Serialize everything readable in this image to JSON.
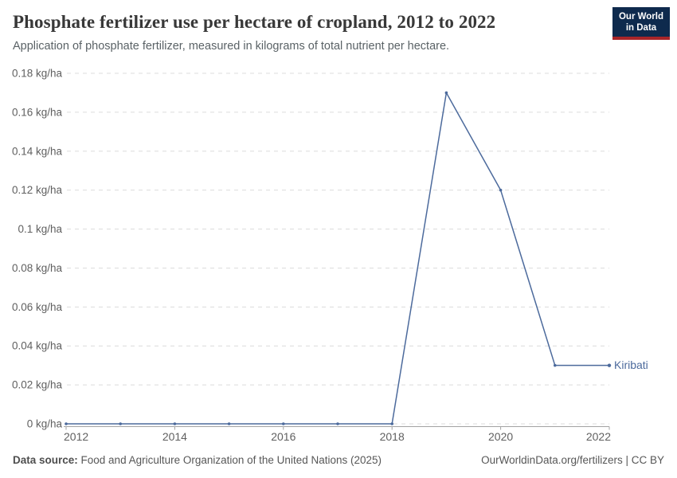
{
  "header": {
    "title": "Phosphate fertilizer use per hectare of cropland, 2012 to 2022",
    "subtitle": "Application of phosphate fertilizer, measured in kilograms of total nutrient per hectare."
  },
  "logo": {
    "line1": "Our World",
    "line2": "in Data"
  },
  "colors": {
    "line": "#4c6a9c",
    "grid": "#dcdcdc",
    "axis": "#a3a3a3",
    "tick_text": "#606060",
    "logo_bg": "#0e2a4d",
    "logo_red": "#a82529"
  },
  "chart_data": {
    "type": "line",
    "title": "Phosphate fertilizer use per hectare of cropland, 2012 to 2022",
    "subtitle": "Application of phosphate fertilizer, measured in kilograms of total nutrient per hectare.",
    "xlabel": "",
    "ylabel": "kg/ha",
    "x": [
      2012,
      2013,
      2014,
      2015,
      2016,
      2017,
      2018,
      2019,
      2020,
      2021,
      2022
    ],
    "series": [
      {
        "name": "Kiribati",
        "color": "#4c6a9c",
        "values": [
          0,
          0,
          0,
          0,
          0,
          0,
          0,
          0.17,
          0.12,
          0.03,
          0.03
        ]
      }
    ],
    "xlim": [
      2012,
      2022
    ],
    "ylim": [
      0,
      0.18
    ],
    "xticks": [
      2012,
      2014,
      2016,
      2018,
      2020,
      2022
    ],
    "xtick_labels": [
      "2012",
      "2014",
      "2016",
      "2018",
      "2020",
      "2022"
    ],
    "yticks": [
      0,
      0.02,
      0.04,
      0.06,
      0.08,
      0.1,
      0.12,
      0.14,
      0.16,
      0.18
    ],
    "ytick_labels": [
      "0 kg/ha",
      "0.02 kg/ha",
      "0.04 kg/ha",
      "0.06 kg/ha",
      "0.08 kg/ha",
      "0.1 kg/ha",
      "0.12 kg/ha",
      "0.14 kg/ha",
      "0.16 kg/ha",
      "0.18 kg/ha"
    ],
    "grid": "horizontal-dashed",
    "legend_position": "end-of-line"
  },
  "footer": {
    "source_label": "Data source:",
    "source_text": " Food and Agriculture Organization of the United Nations (2025)",
    "rights": "OurWorldinData.org/fertilizers | CC BY"
  }
}
